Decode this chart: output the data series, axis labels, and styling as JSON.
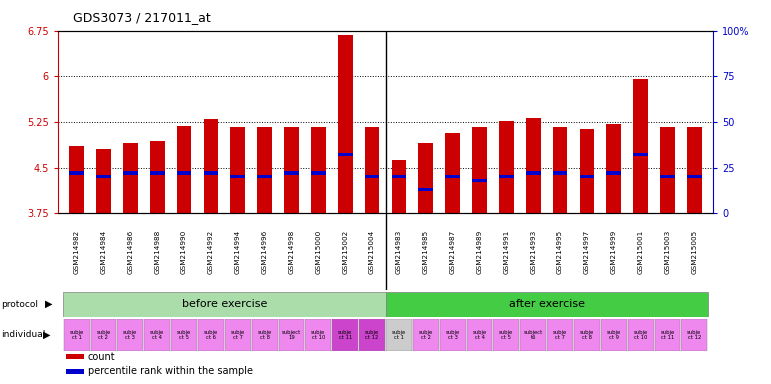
{
  "title": "GDS3073 / 217011_at",
  "samples": [
    "GSM214982",
    "GSM214984",
    "GSM214986",
    "GSM214988",
    "GSM214990",
    "GSM214992",
    "GSM214994",
    "GSM214996",
    "GSM214998",
    "GSM215000",
    "GSM215002",
    "GSM215004",
    "GSM214983",
    "GSM214985",
    "GSM214987",
    "GSM214989",
    "GSM214991",
    "GSM214993",
    "GSM214995",
    "GSM214997",
    "GSM214999",
    "GSM215001",
    "GSM215003",
    "GSM215005"
  ],
  "counts": [
    4.85,
    4.8,
    4.9,
    4.93,
    5.18,
    5.3,
    5.17,
    5.16,
    5.17,
    5.17,
    6.68,
    5.16,
    4.63,
    4.9,
    5.07,
    5.17,
    5.27,
    5.32,
    5.17,
    5.13,
    5.22,
    5.95,
    5.17,
    5.17
  ],
  "percentiles": [
    22,
    20,
    22,
    22,
    22,
    22,
    20,
    20,
    22,
    22,
    32,
    20,
    20,
    13,
    20,
    18,
    20,
    22,
    22,
    20,
    22,
    32,
    20,
    20
  ],
  "ymin": 3.75,
  "ymax": 6.75,
  "yticks": [
    3.75,
    4.5,
    5.25,
    6.0,
    6.75
  ],
  "ytick_labels": [
    "3.75",
    "4.5",
    "5.25",
    "6",
    "6.75"
  ],
  "right_yticks": [
    0,
    25,
    50,
    75,
    100
  ],
  "right_ytick_labels": [
    "0",
    "25",
    "50",
    "75",
    "100%"
  ],
  "bar_color": "#cc0000",
  "blue_color": "#0000cc",
  "bar_width": 0.55,
  "protocol_before_label": "before exercise",
  "protocol_after_label": "after exercise",
  "protocol_before_color": "#aaddaa",
  "protocol_after_color": "#44cc44",
  "individual_light_color": "#ee88ee",
  "individual_dark_color": "#cc44cc",
  "individual_gray_color": "#cccccc",
  "xlabel_bg_color": "#cccccc",
  "bg_color": "#ffffff",
  "left_axis_color": "#cc0000",
  "right_axis_color": "#0000cc",
  "sample_colors_key": [
    0,
    0,
    0,
    0,
    0,
    0,
    0,
    0,
    0,
    0,
    1,
    1,
    2,
    0,
    0,
    0,
    0,
    0,
    0,
    0,
    0,
    0,
    0,
    0
  ],
  "individual_labels": [
    "subje\nct 1",
    "subje\nct 2",
    "subje\nct 3",
    "subje\nct 4",
    "subje\nct 5",
    "subje\nct 6",
    "subje\nct 7",
    "subje\nct 8",
    "subject\n19",
    "subje\nct 10",
    "subje\nct 11",
    "subje\nct 12",
    "subje\nct 1",
    "subje\nct 2",
    "subje\nct 3",
    "subje\nct 4",
    "subje\nct 5",
    "subject\nt6",
    "subje\nct 7",
    "subje\nct 8",
    "subje\nct 9",
    "subje\nct 10",
    "subje\nct 11",
    "subje\nct 12"
  ]
}
